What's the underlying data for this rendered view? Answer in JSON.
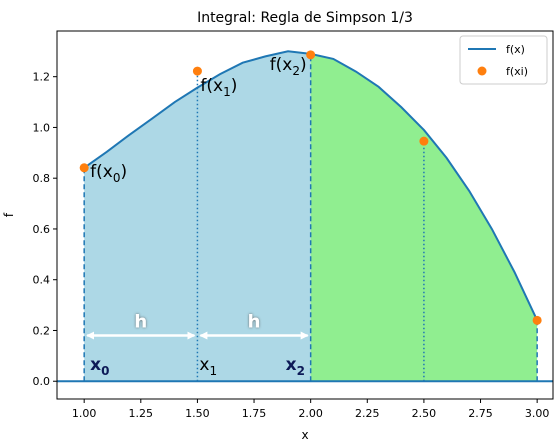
{
  "chart_data": {
    "type": "line",
    "title": "Integral: Regla de Simpson 1/3",
    "xlabel": "x",
    "ylabel": "f",
    "xlim": [
      0.88,
      3.07
    ],
    "ylim": [
      -0.07,
      1.38
    ],
    "x_ticks": [
      "1.00",
      "1.25",
      "1.50",
      "1.75",
      "2.00",
      "2.25",
      "2.50",
      "2.75",
      "3.00"
    ],
    "y_ticks": [
      "0.0",
      "0.2",
      "0.4",
      "0.6",
      "0.8",
      "1.0",
      "1.2"
    ],
    "grid": false,
    "legend": {
      "placement": "top-right",
      "entries": [
        "f(x)",
        "f(xi)"
      ]
    },
    "series": [
      {
        "name": "f(x)",
        "kind": "line",
        "color": "#1f77b4",
        "x": [
          1.0,
          1.1,
          1.2,
          1.3,
          1.4,
          1.5,
          1.6,
          1.7,
          1.8,
          1.9,
          2.0,
          2.1,
          2.2,
          2.3,
          2.4,
          2.5,
          2.6,
          2.7,
          2.8,
          2.9,
          3.0
        ],
        "y": [
          0.841,
          0.904,
          0.971,
          1.035,
          1.1,
          1.157,
          1.21,
          1.255,
          1.28,
          1.3,
          1.29,
          1.27,
          1.22,
          1.16,
          1.08,
          0.99,
          0.88,
          0.75,
          0.6,
          0.43,
          0.24
        ]
      },
      {
        "name": "f(xi)",
        "kind": "scatter",
        "color": "#ff7f0e",
        "x": [
          1.0,
          1.5,
          2.0,
          2.5,
          3.0
        ],
        "y": [
          0.841,
          1.222,
          1.286,
          0.946,
          0.24
        ]
      }
    ],
    "shaded_regions": [
      {
        "x_from": 1.0,
        "x_to": 2.0,
        "color": "#add8e6"
      },
      {
        "x_from": 2.0,
        "x_to": 3.0,
        "color": "#90ee90"
      }
    ],
    "annotations": {
      "point_labels": [
        {
          "x": 1.0,
          "y": 0.841,
          "base": "f(x",
          "sub": "0",
          "end": ")"
        },
        {
          "x": 1.5,
          "y": 1.222,
          "base": "f(x",
          "sub": "1",
          "end": ")"
        },
        {
          "x": 2.0,
          "y": 1.286,
          "base": "f(x",
          "sub": "2",
          "end": ")"
        }
      ],
      "node_labels": [
        {
          "x": 1.0,
          "base": "x",
          "sub": "0",
          "bold": true,
          "color": "#0d1a57"
        },
        {
          "x": 1.5,
          "base": "x",
          "sub": "1",
          "bold": false,
          "color": "#000000"
        },
        {
          "x": 2.0,
          "base": "x",
          "sub": "2",
          "bold": true,
          "color": "#0d1a57"
        }
      ],
      "step_label": "h",
      "step_arrows": [
        {
          "x_from": 1.0,
          "x_to": 1.5,
          "y": 0.18
        },
        {
          "x_from": 1.5,
          "x_to": 2.0,
          "y": 0.18
        }
      ]
    }
  }
}
